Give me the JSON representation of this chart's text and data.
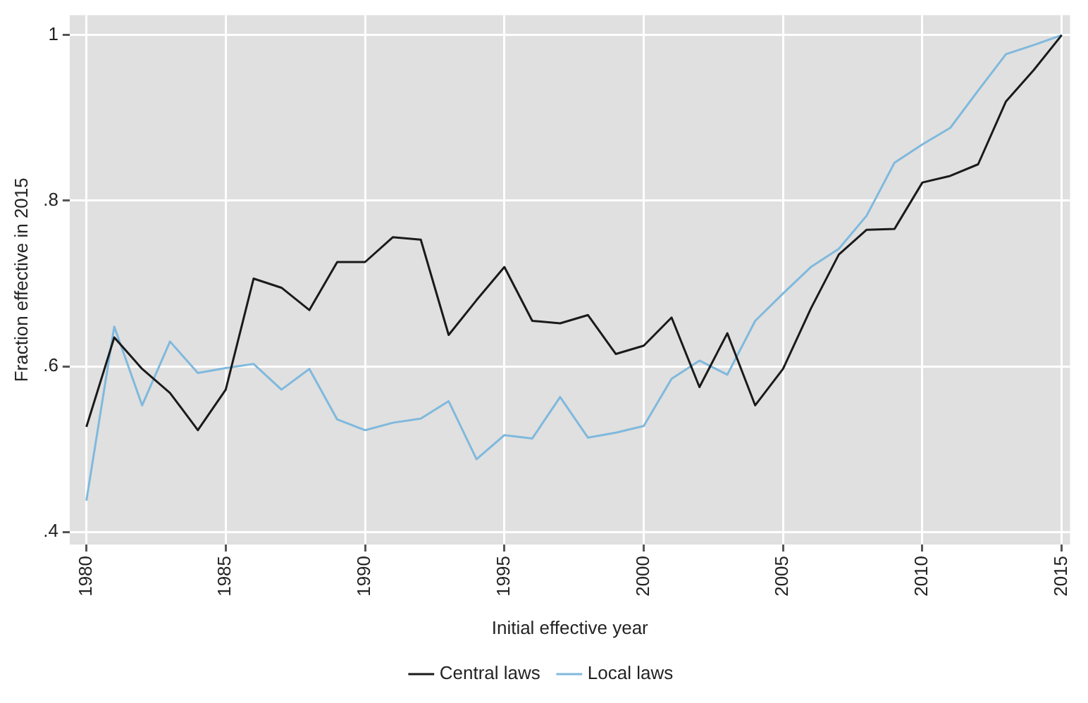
{
  "chart_data": {
    "type": "line",
    "xlabel": "Initial effective year",
    "ylabel": "Fraction effective in 2015",
    "x": [
      1980,
      1981,
      1982,
      1983,
      1984,
      1985,
      1986,
      1987,
      1988,
      1989,
      1990,
      1991,
      1992,
      1993,
      1994,
      1995,
      1996,
      1997,
      1998,
      1999,
      2000,
      2001,
      2002,
      2003,
      2004,
      2005,
      2006,
      2007,
      2008,
      2009,
      2010,
      2011,
      2012,
      2013,
      2014,
      2015
    ],
    "series": [
      {
        "name": "Central laws",
        "color": "#1a1a1a",
        "values": [
          0.527,
          0.635,
          0.597,
          0.568,
          0.523,
          0.572,
          0.706,
          0.695,
          0.668,
          0.726,
          0.726,
          0.756,
          0.753,
          0.638,
          0.68,
          0.72,
          0.655,
          0.652,
          0.662,
          0.615,
          0.625,
          0.659,
          0.575,
          0.64,
          0.553,
          0.597,
          0.67,
          0.735,
          0.765,
          0.766,
          0.822,
          0.83,
          0.844,
          0.92,
          0.958,
          1.0
        ]
      },
      {
        "name": "Local laws",
        "color": "#7fb9dd",
        "values": [
          0.438,
          0.648,
          0.553,
          0.63,
          0.592,
          0.598,
          0.603,
          0.572,
          0.597,
          0.536,
          0.523,
          0.532,
          0.537,
          0.558,
          0.488,
          0.517,
          0.513,
          0.563,
          0.514,
          0.52,
          0.528,
          0.585,
          0.607,
          0.59,
          0.655,
          0.688,
          0.72,
          0.742,
          0.782,
          0.846,
          0.868,
          0.888,
          0.933,
          0.977,
          0.988,
          1.0
        ]
      }
    ],
    "xlim": [
      1979.4,
      2015.3
    ],
    "xticks": [
      1980,
      1985,
      1990,
      1995,
      2000,
      2005,
      2010,
      2015
    ],
    "ylim": [
      0.385,
      1.024
    ],
    "yticks": [
      {
        "value": 0.4,
        "label": ".4"
      },
      {
        "value": 0.6,
        "label": ".6"
      },
      {
        "value": 0.8,
        "label": ".8"
      },
      {
        "value": 1,
        "label": "1"
      }
    ],
    "grid": true,
    "legend": "bottom",
    "marker": "none",
    "line_style": "solid"
  }
}
